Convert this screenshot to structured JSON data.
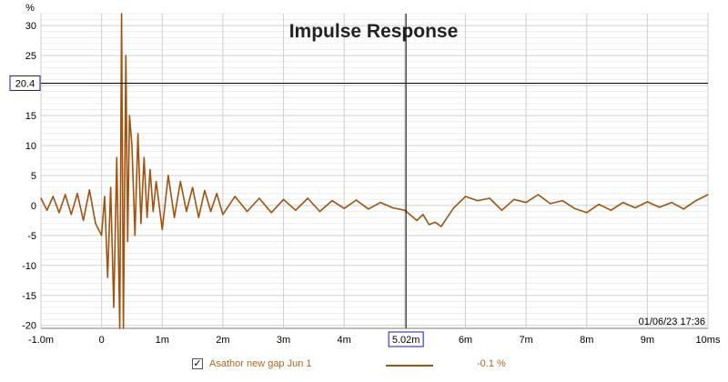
{
  "chart_data": {
    "type": "line",
    "title": "Impulse Response",
    "ylabel": "%",
    "ylim": [
      -20.5,
      32
    ],
    "xlim": [
      -1.0,
      10.0
    ],
    "y_ticks": [
      "30",
      "25",
      "20",
      "15",
      "10",
      "5",
      "0",
      "-5",
      "-10",
      "-15",
      "-20"
    ],
    "x_ticks": [
      "-1.0m",
      "0",
      "1m",
      "2m",
      "3m",
      "4m",
      "6m",
      "7m",
      "8m",
      "9m",
      "10ms"
    ],
    "grid": true,
    "series": [
      {
        "name": "Asathor new gap Jun 1",
        "color": "#a0520e",
        "x": [
          -1.0,
          -0.9,
          -0.8,
          -0.7,
          -0.6,
          -0.5,
          -0.4,
          -0.3,
          -0.2,
          -0.1,
          0.0,
          0.05,
          0.1,
          0.15,
          0.2,
          0.25,
          0.3,
          0.33,
          0.36,
          0.4,
          0.43,
          0.46,
          0.5,
          0.55,
          0.6,
          0.65,
          0.7,
          0.75,
          0.8,
          0.85,
          0.9,
          1.0,
          1.1,
          1.2,
          1.3,
          1.4,
          1.5,
          1.6,
          1.7,
          1.8,
          1.9,
          2.0,
          2.2,
          2.4,
          2.6,
          2.8,
          3.0,
          3.2,
          3.4,
          3.6,
          3.8,
          4.0,
          4.2,
          4.4,
          4.6,
          4.8,
          5.0,
          5.2,
          5.3,
          5.4,
          5.5,
          5.6,
          5.7,
          5.8,
          5.9,
          6.0,
          6.2,
          6.4,
          6.6,
          6.8,
          7.0,
          7.2,
          7.4,
          7.6,
          7.8,
          8.0,
          8.2,
          8.4,
          8.6,
          8.8,
          9.0,
          9.2,
          9.4,
          9.6,
          9.8,
          10.0
        ],
        "values": [
          1.2,
          -0.8,
          1.5,
          -1.2,
          1.8,
          -1.5,
          2.0,
          -2.5,
          2.6,
          -3.0,
          -5,
          1.5,
          -12,
          3,
          -17,
          8,
          -20.5,
          32,
          -20.5,
          25,
          -6,
          15,
          10,
          -5,
          12,
          -3,
          8,
          -2,
          6,
          -1,
          4,
          -4,
          5,
          -2,
          4,
          -1,
          3,
          -2,
          2.5,
          -1,
          2,
          -1.5,
          1.5,
          -1,
          1.2,
          -1.2,
          1.0,
          -0.8,
          1.2,
          -1,
          0.8,
          -0.5,
          0.9,
          -0.6,
          0.5,
          -0.4,
          -0.8,
          -2.5,
          -1.5,
          -3.2,
          -2.8,
          -3.5,
          -2,
          -0.5,
          0.5,
          1.5,
          0.8,
          1.2,
          -0.8,
          1.0,
          0.5,
          1.8,
          0.3,
          0.8,
          -0.5,
          -1.2,
          0.2,
          -0.8,
          0.5,
          -0.4,
          0.6,
          -0.3,
          0.5,
          -0.6,
          0.8,
          1.8
        ]
      }
    ],
    "cursor": {
      "y_label": "20.4",
      "y_value": 20.4,
      "x_label": "5.02m",
      "x_value": 5.02
    },
    "timestamp": "01/06/23 17:36"
  },
  "legend": {
    "checked": true,
    "check_glyph": "✓",
    "series_name": "Asathor new gap Jun 1",
    "value": "-0.1 %"
  },
  "colors": {
    "trace": "#a0520e",
    "grid": "#d9d9d9",
    "cursor_box": "#1a1aa0"
  }
}
